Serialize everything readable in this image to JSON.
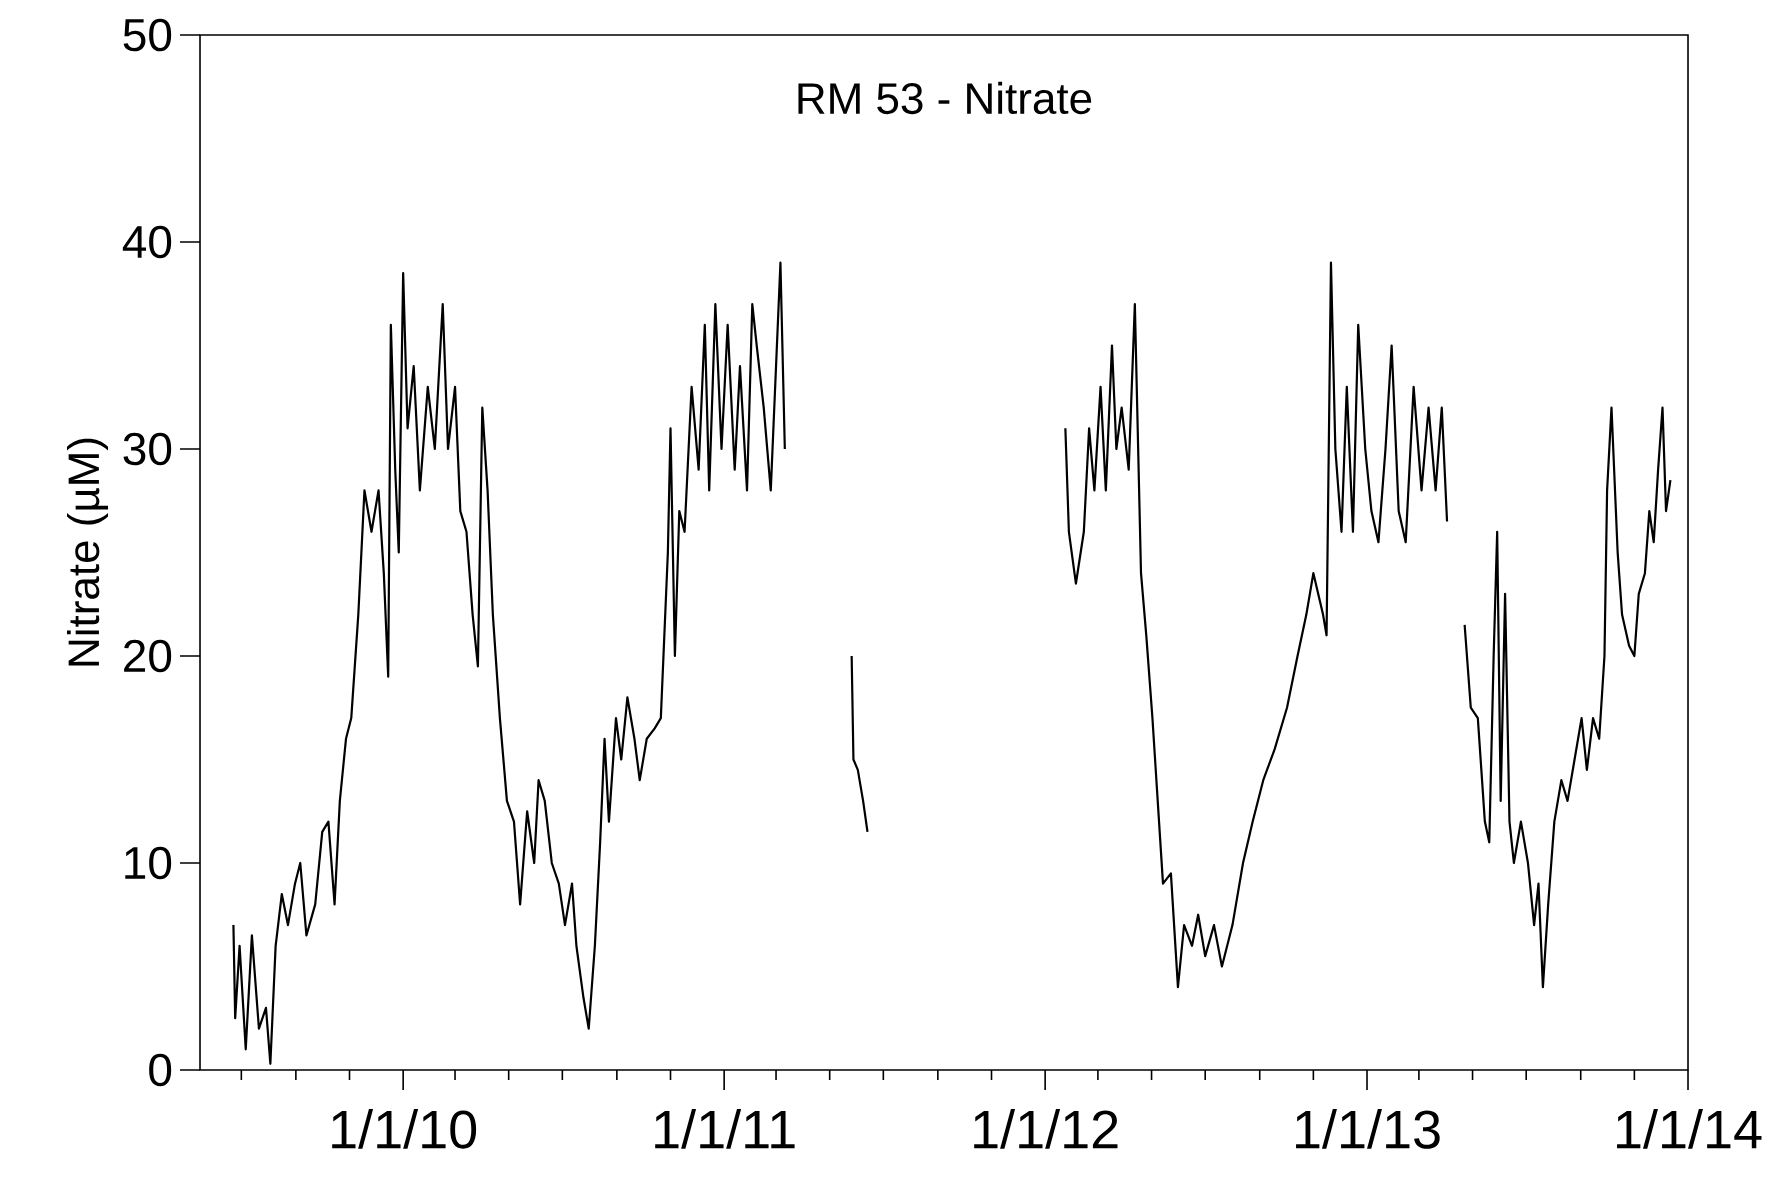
{
  "chart_data": {
    "type": "line",
    "title": "RM 53 -  Nitrate",
    "ylabel": "Nitrate (µM)",
    "x": [
      "2009-06-22",
      "2009-06-24",
      "2009-06-29",
      "2009-07-06",
      "2009-07-13",
      "2009-07-21",
      "2009-07-29",
      "2009-08-03",
      "2009-08-09",
      "2009-08-16",
      "2009-08-23",
      "2009-08-31",
      "2009-09-06",
      "2009-09-13",
      "2009-09-23",
      "2009-10-01",
      "2009-10-08",
      "2009-10-15",
      "2009-10-21",
      "2009-10-28",
      "2009-11-03",
      "2009-11-11",
      "2009-11-18",
      "2009-11-26",
      "2009-12-04",
      "2009-12-10",
      "2009-12-15",
      "2009-12-18",
      "2009-12-23",
      "2009-12-27",
      "2010-01-01",
      "2010-01-06",
      "2010-01-13",
      "2010-01-20",
      "2010-01-29",
      "2010-02-06",
      "2010-02-15",
      "2010-02-21",
      "2010-03-01",
      "2010-03-07",
      "2010-03-14",
      "2010-03-21",
      "2010-03-27",
      "2010-04-01",
      "2010-04-07",
      "2010-04-13",
      "2010-04-21",
      "2010-04-29",
      "2010-05-07",
      "2010-05-14",
      "2010-05-22",
      "2010-05-30",
      "2010-06-04",
      "2010-06-11",
      "2010-06-19",
      "2010-06-27",
      "2010-07-04",
      "2010-07-12",
      "2010-07-17",
      "2010-07-25",
      "2010-07-31",
      "2010-08-07",
      "2010-08-13",
      "2010-08-18",
      "2010-08-23",
      "2010-08-31",
      "2010-09-06",
      "2010-09-13",
      "2010-09-21",
      "2010-09-27",
      "2010-10-05",
      "2010-10-14",
      "2010-10-21",
      "2010-10-29",
      "2010-11-01",
      "2010-11-06",
      "2010-11-11",
      "2010-11-17",
      "2010-11-25",
      "2010-12-03",
      "2010-12-10",
      "2010-12-15",
      "2010-12-22",
      "2010-12-29",
      "2011-01-05",
      "2011-01-13",
      "2011-01-19",
      "2011-01-27",
      "2011-02-02",
      "2011-02-07",
      "2011-02-15",
      "2011-02-23",
      "2011-03-01",
      "2011-03-06",
      "2011-03-11",
      "2011-04-15",
      "2011-05-26",
      "2011-05-28",
      "2011-06-02",
      "2011-06-08",
      "2011-06-13",
      "2011-09-01",
      "2012-01-24",
      "2012-01-28",
      "2012-02-05",
      "2012-02-14",
      "2012-02-20",
      "2012-02-26",
      "2012-03-04",
      "2012-03-10",
      "2012-03-17",
      "2012-03-22",
      "2012-03-28",
      "2012-04-05",
      "2012-04-12",
      "2012-04-19",
      "2012-04-25",
      "2012-05-02",
      "2012-05-08",
      "2012-05-14",
      "2012-05-23",
      "2012-05-31",
      "2012-06-07",
      "2012-06-16",
      "2012-06-23",
      "2012-07-01",
      "2012-07-11",
      "2012-07-20",
      "2012-08-01",
      "2012-08-13",
      "2012-08-24",
      "2012-09-05",
      "2012-09-18",
      "2012-10-02",
      "2012-10-14",
      "2012-10-24",
      "2012-11-01",
      "2012-11-12",
      "2012-11-16",
      "2012-11-21",
      "2012-11-26",
      "2012-12-03",
      "2012-12-09",
      "2012-12-16",
      "2012-12-22",
      "2012-12-30",
      "2013-01-06",
      "2013-01-14",
      "2013-01-22",
      "2013-01-29",
      "2013-02-06",
      "2013-02-14",
      "2013-02-23",
      "2013-03-04",
      "2013-03-12",
      "2013-03-20",
      "2013-03-27",
      "2013-04-02",
      "2013-04-12",
      "2013-04-22",
      "2013-04-29",
      "2013-05-07",
      "2013-05-15",
      "2013-05-20",
      "2013-05-25",
      "2013-05-29",
      "2013-06-02",
      "2013-06-07",
      "2013-06-12",
      "2013-06-17",
      "2013-06-25",
      "2013-07-03",
      "2013-07-10",
      "2013-07-15",
      "2013-07-20",
      "2013-07-26",
      "2013-08-02",
      "2013-08-10",
      "2013-08-17",
      "2013-08-25",
      "2013-09-02",
      "2013-09-08",
      "2013-09-15",
      "2013-09-22",
      "2013-09-28",
      "2013-10-01",
      "2013-10-06",
      "2013-10-13",
      "2013-10-18",
      "2013-10-26",
      "2013-11-01",
      "2013-11-06",
      "2013-11-13",
      "2013-11-18",
      "2013-11-23",
      "2013-11-28",
      "2013-12-03",
      "2013-12-07",
      "2013-12-12"
    ],
    "series": [
      {
        "color": "#000000",
        "values": [
          7,
          2.5,
          6,
          1,
          6.5,
          2,
          3,
          0.3,
          6,
          8.5,
          7,
          9,
          10,
          6.5,
          8,
          11.5,
          12,
          8,
          13,
          16,
          17,
          22,
          28,
          26,
          28,
          24,
          19,
          36,
          29,
          25,
          38.5,
          31,
          34,
          28,
          33,
          30,
          37,
          30,
          33,
          27,
          26,
          22,
          19.5,
          32,
          28,
          22,
          17,
          13,
          12,
          8,
          12.5,
          10,
          14,
          13,
          10,
          9,
          7,
          9,
          6,
          3.5,
          2,
          6,
          11,
          16,
          12,
          17,
          15,
          18,
          16,
          14,
          16,
          16.5,
          17,
          25,
          31,
          20,
          27,
          26,
          33,
          29,
          36,
          28,
          37,
          30,
          36,
          29,
          34,
          28,
          37,
          35,
          32,
          28,
          34,
          39,
          30,
          null,
          20,
          15,
          14.5,
          13,
          11.5,
          null,
          31,
          26,
          23.5,
          26,
          31,
          28,
          33,
          28,
          35,
          30,
          32,
          29,
          37,
          24,
          21,
          17,
          13,
          9,
          9.5,
          4,
          7,
          6,
          7.5,
          5.5,
          7,
          5,
          7,
          10,
          12,
          14,
          15.5,
          17.5,
          20,
          22,
          24,
          22,
          21,
          39,
          30,
          26,
          33,
          26,
          36,
          30,
          27,
          25.5,
          30,
          35,
          27,
          25.5,
          33,
          28,
          32,
          28,
          32,
          26.5,
          null,
          21.5,
          17.5,
          17,
          12,
          11,
          20,
          26,
          13,
          23,
          12,
          10,
          12,
          10,
          7,
          9,
          4,
          8,
          12,
          14,
          13,
          15,
          17,
          14.5,
          17,
          16,
          20,
          28,
          32,
          25,
          22,
          20.5,
          20,
          23,
          24,
          27,
          25.5,
          29,
          32,
          27,
          28.5
        ]
      }
    ],
    "xlim": [
      "2009-05-15",
      "2014-01-01"
    ],
    "ylim": [
      0,
      50
    ],
    "yticks": [
      0,
      10,
      20,
      30,
      40,
      50
    ],
    "xticks": [
      {
        "value": "2009-07-01",
        "label": null
      },
      {
        "value": "2009-09-01",
        "label": null
      },
      {
        "value": "2009-11-01",
        "label": null
      },
      {
        "value": "2010-01-01",
        "label": "1/1/10"
      },
      {
        "value": "2010-03-01",
        "label": null
      },
      {
        "value": "2010-05-01",
        "label": null
      },
      {
        "value": "2010-07-01",
        "label": null
      },
      {
        "value": "2010-09-01",
        "label": null
      },
      {
        "value": "2010-11-01",
        "label": null
      },
      {
        "value": "2011-01-01",
        "label": "1/1/11"
      },
      {
        "value": "2011-03-01",
        "label": null
      },
      {
        "value": "2011-05-01",
        "label": null
      },
      {
        "value": "2011-07-01",
        "label": null
      },
      {
        "value": "2011-09-01",
        "label": null
      },
      {
        "value": "2011-11-01",
        "label": null
      },
      {
        "value": "2012-01-01",
        "label": "1/1/12"
      },
      {
        "value": "2012-03-01",
        "label": null
      },
      {
        "value": "2012-05-01",
        "label": null
      },
      {
        "value": "2012-07-01",
        "label": null
      },
      {
        "value": "2012-09-01",
        "label": null
      },
      {
        "value": "2012-11-01",
        "label": null
      },
      {
        "value": "2013-01-01",
        "label": "1/1/13"
      },
      {
        "value": "2013-03-01",
        "label": null
      },
      {
        "value": "2013-05-01",
        "label": null
      },
      {
        "value": "2013-07-01",
        "label": null
      },
      {
        "value": "2013-09-01",
        "label": null
      },
      {
        "value": "2013-11-01",
        "label": null
      },
      {
        "value": "2014-01-01",
        "label": "1/1/14"
      }
    ]
  }
}
